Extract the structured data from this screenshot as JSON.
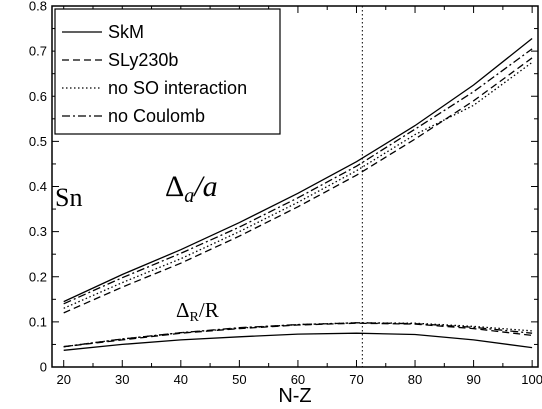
{
  "chart_data": {
    "type": "line",
    "xlabel": "N-Z",
    "ylabel": "",
    "xlim": [
      18,
      101
    ],
    "ylim": [
      0,
      0.8
    ],
    "xticks": [
      20,
      30,
      40,
      50,
      60,
      70,
      80,
      90,
      100
    ],
    "yticks": [
      0,
      0.1,
      0.2,
      0.3,
      0.4,
      0.5,
      0.6,
      0.7,
      0.8
    ],
    "xtick_labels": [
      "20",
      "30",
      "40",
      "50",
      "60",
      "70",
      "80",
      "90",
      "100"
    ],
    "ytick_labels": [
      "0",
      "0.1",
      "0.2",
      "0.3",
      "0.4",
      "0.5",
      "0.6",
      "0.7",
      "0.8"
    ],
    "grid": false,
    "legend_position": "top-left",
    "vline_x": 71,
    "annotations": {
      "element": "Sn",
      "delta_a_main": "Δ",
      "delta_a_sub": "a",
      "delta_a_tail": "/a",
      "delta_r_main": "Δ",
      "delta_r_sub": "R",
      "delta_r_tail": "/R"
    },
    "legend": [
      {
        "label": "SkM",
        "style": "solid"
      },
      {
        "label": "SLy230b",
        "style": "dashed"
      },
      {
        "label": "no SO interaction",
        "style": "dotted"
      },
      {
        "label": "no Coulomb",
        "style": "dashdot"
      }
    ],
    "series": [
      {
        "name": "SkM",
        "style": "solid",
        "x": [
          20,
          30,
          40,
          50,
          60,
          70,
          80,
          90,
          100
        ],
        "y": [
          0.145,
          0.205,
          0.26,
          0.32,
          0.385,
          0.455,
          0.535,
          0.625,
          0.728
        ]
      },
      {
        "name": "SLy230b",
        "style": "dashed",
        "x": [
          20,
          30,
          40,
          50,
          60,
          70,
          80,
          90,
          100
        ],
        "y": [
          0.12,
          0.177,
          0.23,
          0.29,
          0.355,
          0.425,
          0.505,
          0.59,
          0.685
        ]
      },
      {
        "name": "no SO interaction",
        "style": "dotted",
        "x": [
          20,
          30,
          40,
          50,
          60,
          70,
          80,
          90,
          100
        ],
        "y": [
          0.13,
          0.187,
          0.24,
          0.3,
          0.365,
          0.435,
          0.515,
          0.58,
          0.675
        ]
      },
      {
        "name": "no Coulomb",
        "style": "dashdot",
        "x": [
          20,
          30,
          40,
          50,
          60,
          70,
          80,
          90,
          100
        ],
        "y": [
          0.14,
          0.198,
          0.252,
          0.31,
          0.375,
          0.445,
          0.527,
          0.61,
          0.705
        ]
      },
      {
        "name": "SkM",
        "style": "solid",
        "x": [
          20,
          30,
          40,
          50,
          60,
          70,
          80,
          90,
          100
        ],
        "y": [
          0.037,
          0.05,
          0.06,
          0.067,
          0.073,
          0.075,
          0.072,
          0.06,
          0.043
        ]
      },
      {
        "name": "SLy230b",
        "style": "dashed",
        "x": [
          20,
          30,
          40,
          50,
          60,
          70,
          80,
          90,
          100
        ],
        "y": [
          0.045,
          0.06,
          0.075,
          0.085,
          0.093,
          0.097,
          0.095,
          0.085,
          0.07
        ]
      },
      {
        "name": "no SO interaction",
        "style": "dotted",
        "x": [
          20,
          30,
          40,
          50,
          60,
          70,
          80,
          90,
          100
        ],
        "y": [
          0.045,
          0.062,
          0.076,
          0.086,
          0.094,
          0.098,
          0.097,
          0.09,
          0.08
        ]
      },
      {
        "name": "no Coulomb",
        "style": "dashdot",
        "x": [
          20,
          30,
          40,
          50,
          60,
          70,
          80,
          90,
          100
        ],
        "y": [
          0.045,
          0.062,
          0.076,
          0.087,
          0.094,
          0.098,
          0.096,
          0.088,
          0.075
        ]
      }
    ]
  }
}
